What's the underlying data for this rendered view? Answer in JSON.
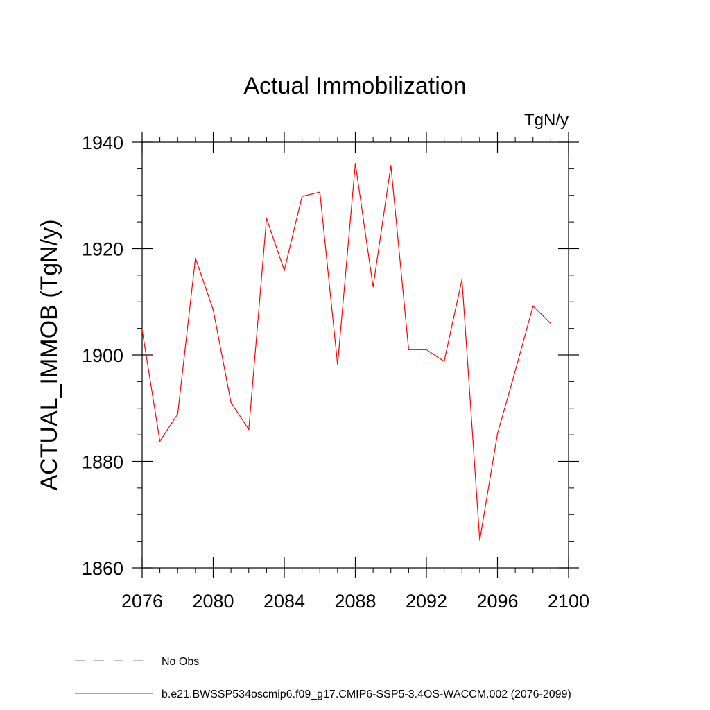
{
  "chart_data": {
    "type": "line",
    "title": "Actual Immobilization",
    "units": "TgN/y",
    "xlabel": "",
    "ylabel": "ACTUAL_IMMOB  (TgN/y)",
    "xlim": [
      2076,
      2100
    ],
    "ylim": [
      1860,
      1940
    ],
    "x_ticks": [
      2076,
      2080,
      2084,
      2088,
      2092,
      2096,
      2100
    ],
    "y_ticks": [
      1860,
      1880,
      1900,
      1920,
      1940
    ],
    "x_minor_step": 1,
    "y_minor_step": 5,
    "legend_position": "bottom-left",
    "series": [
      {
        "name": "b.e21.BWSSP534oscmip6.f09_g17.CMIP6-SSP5-3.4OS-WACCM.002 (2076-2099)",
        "color": "#ff0000",
        "dash": "solid",
        "x": [
          2076,
          2077,
          2078,
          2079,
          2080,
          2081,
          2082,
          2083,
          2084,
          2085,
          2086,
          2087,
          2088,
          2089,
          2090,
          2091,
          2092,
          2093,
          2094,
          2095,
          2096,
          2097,
          2098,
          2099
        ],
        "values": [
          1904.7,
          1883.8,
          1888.9,
          1918.2,
          1908.5,
          1891.1,
          1886.0,
          1925.7,
          1915.9,
          1929.8,
          1930.6,
          1898.2,
          1936.0,
          1912.8,
          1935.6,
          1901.0,
          1901.0,
          1898.8,
          1914.2,
          1865.2,
          1885.2,
          1897.0,
          1909.2,
          1905.9
        ]
      }
    ],
    "legend": [
      {
        "label": "No Obs",
        "color": "#7b68c8",
        "dash": "dashed"
      },
      {
        "label": "b.e21.BWSSP534oscmip6.f09_g17.CMIP6-SSP5-3.4OS-WACCM.002 (2076-2099)",
        "color": "#ff0000",
        "dash": "solid"
      }
    ]
  }
}
